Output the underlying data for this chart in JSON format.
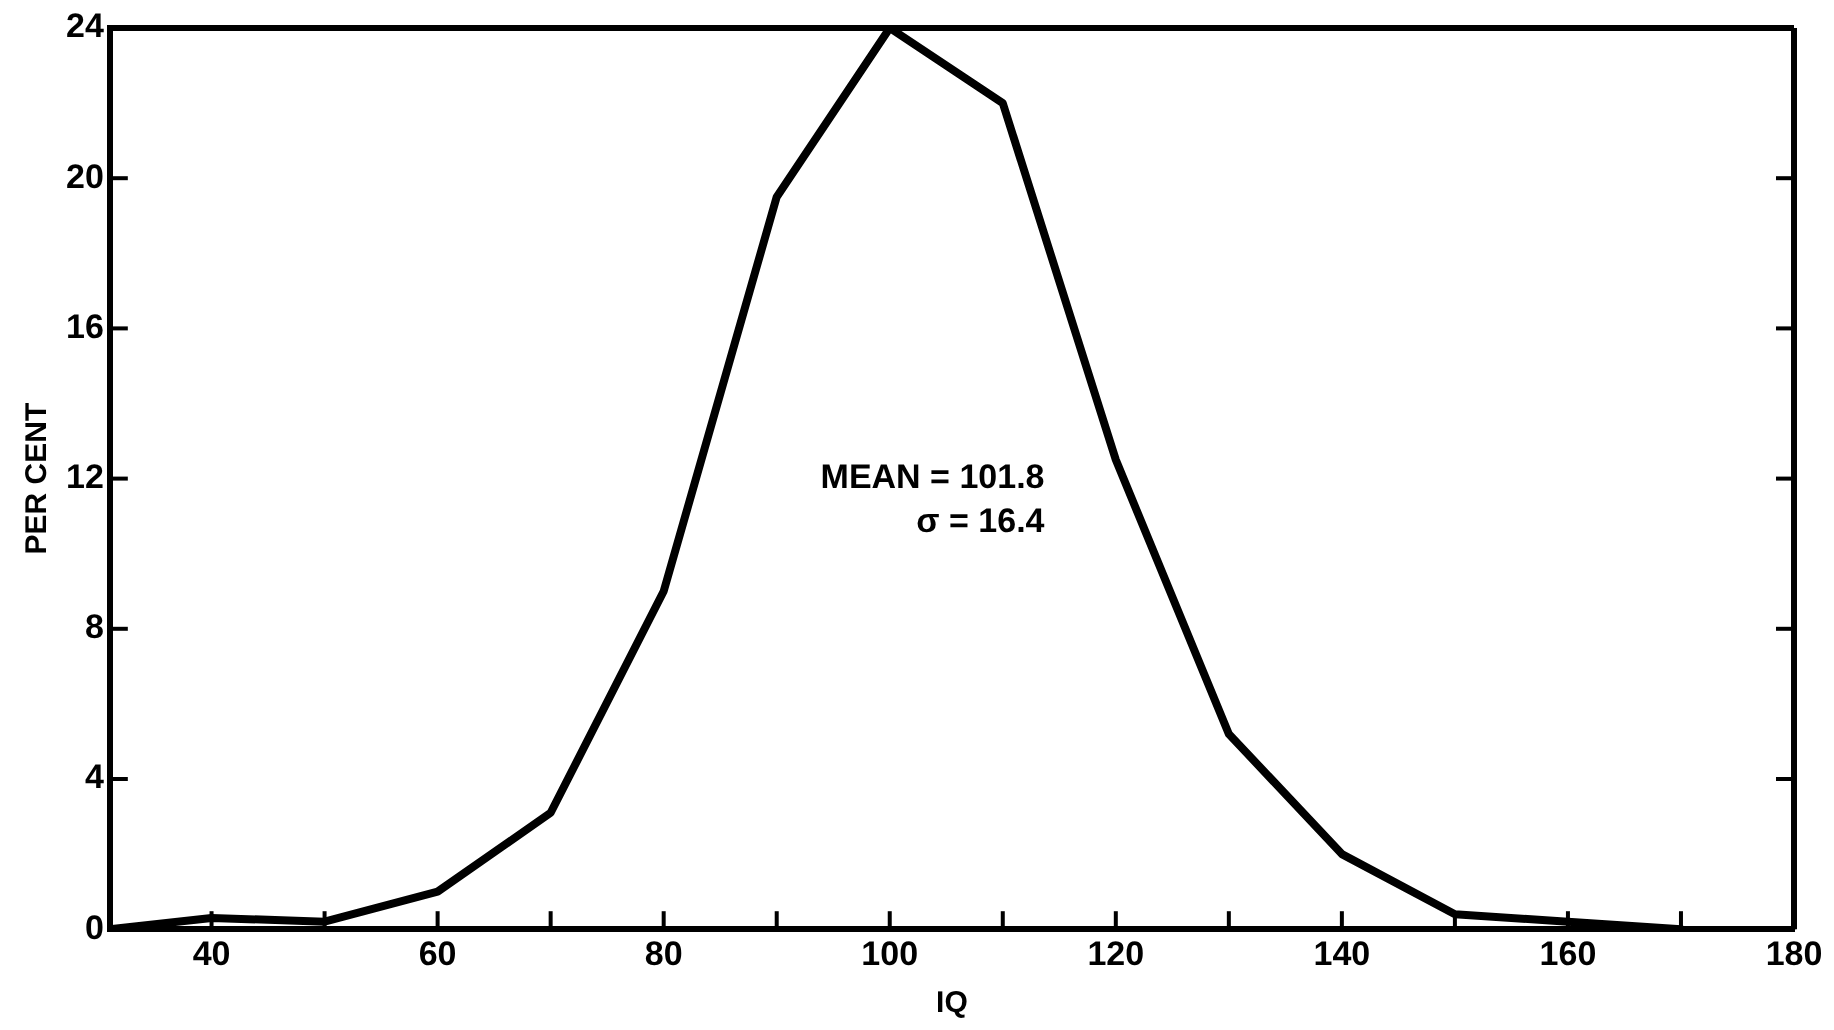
{
  "chart_data": {
    "type": "line",
    "xlabel": "IQ",
    "ylabel": "PER CENT",
    "x": [
      31,
      40,
      50,
      60,
      70,
      80,
      90,
      100,
      110,
      120,
      130,
      140,
      150,
      160,
      170
    ],
    "series": [
      {
        "color": "#000000",
        "values": [
          0,
          0.3,
          0.2,
          1,
          3.1,
          9,
          19.5,
          24,
          22,
          12.5,
          5.2,
          2,
          0.4,
          0.2,
          0
        ]
      }
    ],
    "xlim": [
      31,
      180
    ],
    "xticks": [
      40,
      {
        "value": 50,
        "label": null
      },
      60,
      {
        "value": 70,
        "label": null
      },
      80,
      {
        "value": 90,
        "label": null
      },
      100,
      {
        "value": 110,
        "label": null
      },
      120,
      {
        "value": 130,
        "label": null
      },
      140,
      {
        "value": 150,
        "label": null
      },
      160,
      {
        "value": 170,
        "label": null
      },
      180
    ],
    "ylim": [
      0,
      24
    ],
    "yticks": [
      0,
      4,
      8,
      12,
      16,
      20,
      24
    ],
    "annotations": [
      "MEAN = 101.8",
      "σ = 16.4"
    ],
    "marker": "none",
    "line_style": "solid",
    "grid": false,
    "legend": false
  }
}
